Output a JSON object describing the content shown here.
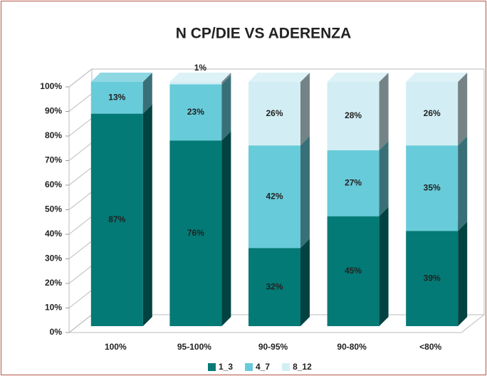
{
  "chart_data": {
    "type": "bar3d_stacked",
    "title": "N CP/DIE VS ADERENZA",
    "categories": [
      "100%",
      "95-100%",
      "90-95%",
      "90-80%",
      "<80%"
    ],
    "series": [
      {
        "name": "1_3",
        "color": "#037a76",
        "values": [
          87,
          76,
          32,
          45,
          39
        ],
        "value_labels": [
          "87%",
          "76%",
          "32%",
          "45%",
          "39%"
        ]
      },
      {
        "name": "4_7",
        "color": "#68cbd9",
        "values": [
          13,
          23,
          42,
          27,
          35
        ],
        "value_labels": [
          "13%",
          "23%",
          "42%",
          "27%",
          "35%"
        ]
      },
      {
        "name": "8_12",
        "color": "#d2eef4",
        "values": [
          0,
          1,
          26,
          28,
          26
        ],
        "value_labels": [
          null,
          "1%",
          "26%",
          "28%",
          "26%"
        ]
      }
    ],
    "ylim": [
      0,
      100
    ],
    "yticks": [
      {
        "value": 0,
        "label": "0%"
      },
      {
        "value": 10,
        "label": "10%"
      },
      {
        "value": 20,
        "label": "20%"
      },
      {
        "value": 30,
        "label": "30%"
      },
      {
        "value": 40,
        "label": "40%"
      },
      {
        "value": 50,
        "label": "50%"
      },
      {
        "value": 60,
        "label": "60%"
      },
      {
        "value": 70,
        "label": "70%"
      },
      {
        "value": 80,
        "label": "80%"
      },
      {
        "value": 90,
        "label": "90%"
      },
      {
        "value": 100,
        "label": "100%"
      }
    ],
    "grid": false,
    "legend": "bottom"
  }
}
